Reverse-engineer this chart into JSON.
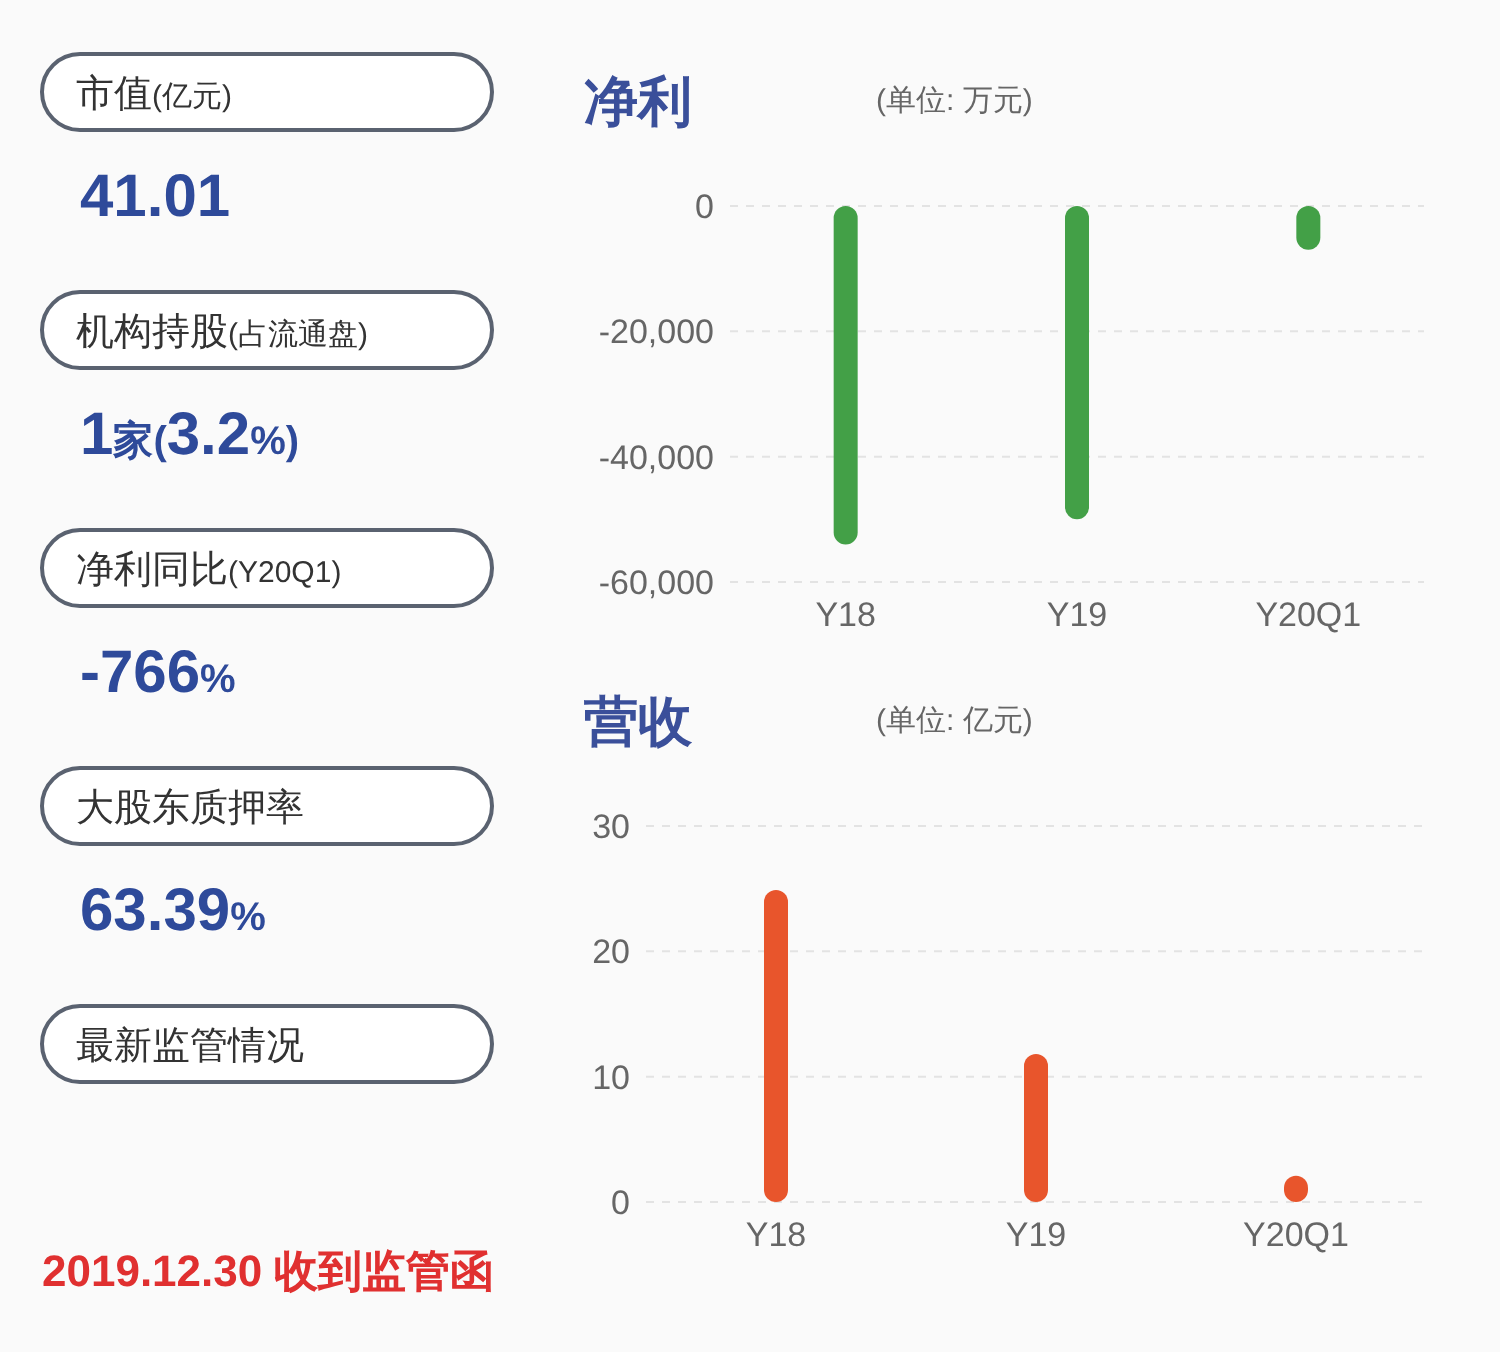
{
  "chart_data": [
    {
      "type": "other",
      "annotations": [
        "市值(亿元)",
        "41.01",
        "机构持股(占流通盘)",
        "1家(3.2%)",
        "净利同比(Y20Q1)",
        "-766%",
        "大股东质押率",
        "63.39%",
        "最新监管情况",
        "2019.12.30 收到监管函"
      ]
    },
    {
      "type": "bar",
      "title": "净利",
      "subtitle": "(单位: 万元)",
      "categories": [
        "Y18",
        "Y19",
        "Y20Q1"
      ],
      "series": [
        {
          "color": "#43a047",
          "values": [
            -54000,
            -50000,
            -7000
          ]
        }
      ],
      "ylim": [
        -60000,
        0
      ],
      "yticks": [
        {
          "value": -60000,
          "label": "-60,000"
        },
        {
          "value": -40000,
          "label": "-40,000"
        },
        {
          "value": -20000,
          "label": "-20,000"
        },
        0
      ],
      "grid": "y"
    },
    {
      "type": "bar",
      "title": "营收",
      "subtitle": "(单位: 亿元)",
      "categories": [
        "Y18",
        "Y19",
        "Y20Q1"
      ],
      "series": [
        {
          "color": "#e8552c",
          "values": [
            24.9,
            11.8,
            2.1
          ]
        }
      ],
      "ylim": [
        0,
        30
      ],
      "yticks": [
        0,
        10,
        20,
        30
      ],
      "grid": "y"
    }
  ]
}
